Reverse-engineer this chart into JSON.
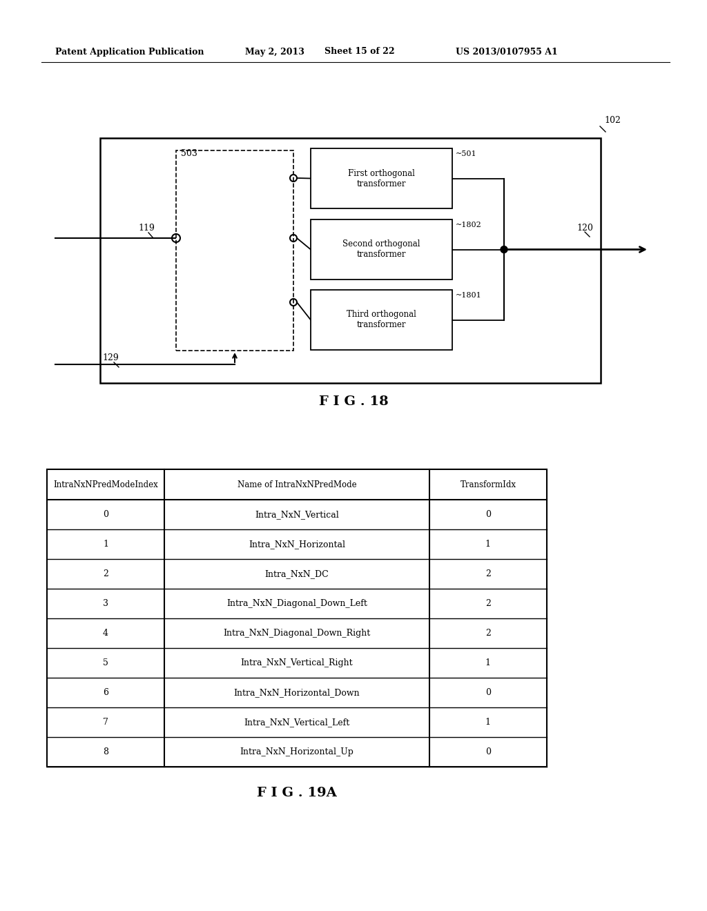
{
  "background_color": "#ffffff",
  "header_text": "Patent Application Publication",
  "header_date": "May 2, 2013",
  "header_sheet": "Sheet 15 of 22",
  "header_patent": "US 2013/0107955 A1",
  "fig18_label": "F I G . 18",
  "fig19a_label": "F I G . 19A",
  "table": {
    "col_headers": [
      "IntraNxNPredModeIndex",
      "Name of IntraNxNPredMode",
      "TransformIdx"
    ],
    "rows": [
      [
        "0",
        "Intra_NxN_Vertical",
        "0"
      ],
      [
        "1",
        "Intra_NxN_Horizontal",
        "1"
      ],
      [
        "2",
        "Intra_NxN_DC",
        "2"
      ],
      [
        "3",
        "Intra_NxN_Diagonal_Down_Left",
        "2"
      ],
      [
        "4",
        "Intra_NxN_Diagonal_Down_Right",
        "2"
      ],
      [
        "5",
        "Intra_NxN_Vertical_Right",
        "1"
      ],
      [
        "6",
        "Intra_NxN_Horizontal_Down",
        "0"
      ],
      [
        "7",
        "Intra_NxN_Vertical_Left",
        "1"
      ],
      [
        "8",
        "Intra_NxN_Horizontal_Up",
        "0"
      ]
    ]
  }
}
